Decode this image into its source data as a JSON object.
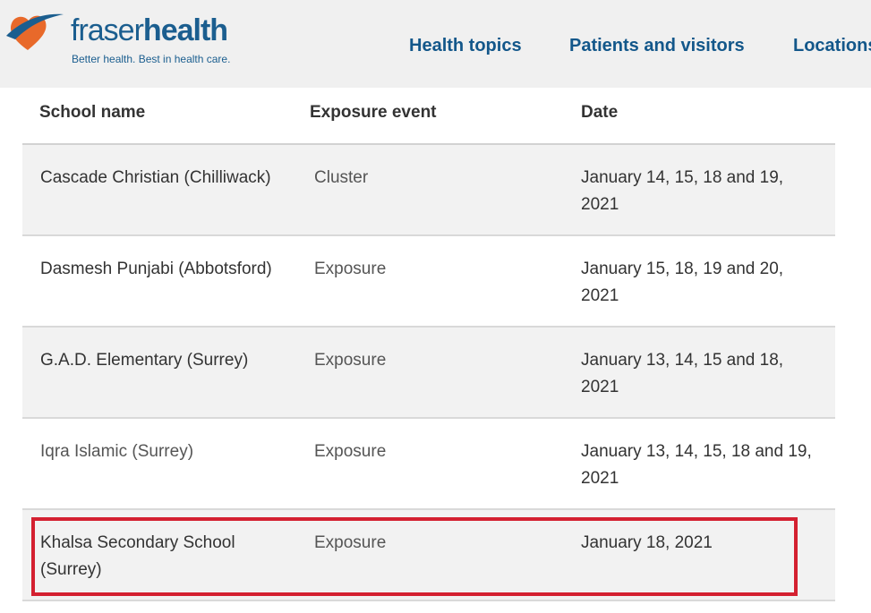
{
  "header": {
    "logo": {
      "name_light": "fraser",
      "name_bold": "health",
      "tagline": "Better health. Best in health care."
    },
    "nav": [
      "Health topics",
      "Patients and visitors",
      "Locations"
    ]
  },
  "table": {
    "columns": [
      "School name",
      "Exposure event",
      "Date"
    ],
    "rows": [
      {
        "school": " Cascade Christian (Chilliwack)",
        "event": "Cluster",
        "date": " January 14, 15, 18 and 19, 2021"
      },
      {
        "school": " Dasmesh Punjabi (Abbotsford)",
        "event": "Exposure",
        "date": " January 15, 18, 19 and 20, 2021"
      },
      {
        "school": " G.A.D. Elementary (Surrey)",
        "event": "Exposure",
        "date": " January 13, 14, 15 and 18, 2021"
      },
      {
        "school": " Iqra Islamic (Surrey)",
        "event": "Exposure",
        "date": " January 13, 14, 15, 18 and 19, 2021"
      },
      {
        "school": " Khalsa Secondary School (Surrey)",
        "event": "Exposure",
        "date": " January 18, 2021"
      }
    ]
  },
  "colors": {
    "brand_blue": "#1b5e8f",
    "heart_orange": "#e8692a",
    "highlight_red": "#d42030"
  },
  "icons": {
    "logo_mark": "heart-swoosh-icon"
  }
}
